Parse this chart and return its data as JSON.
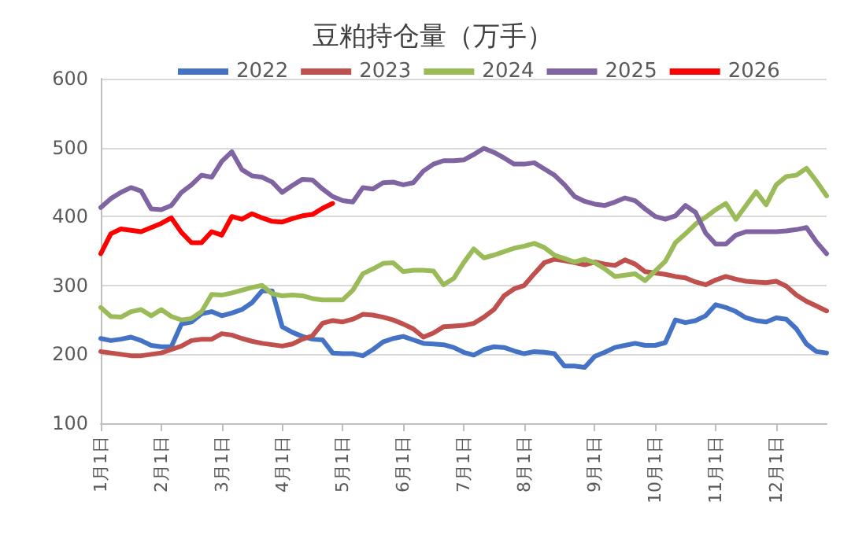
{
  "chart_data": {
    "type": "line",
    "title": "豆粕持仓量（万手）",
    "legend": "top",
    "grid": "y",
    "marker": "none",
    "line_style": "solid",
    "ylim": [
      100,
      600
    ],
    "yticks": [
      100,
      200,
      300,
      400,
      500,
      600
    ],
    "categories": [
      "1月1日",
      null,
      null,
      null,
      null,
      null,
      "2月1日",
      null,
      null,
      null,
      null,
      null,
      "3月1日",
      null,
      null,
      null,
      null,
      null,
      "4月1日",
      null,
      null,
      null,
      null,
      null,
      "5月1日",
      null,
      null,
      null,
      null,
      null,
      "6月1日",
      null,
      null,
      null,
      null,
      null,
      "7月1日",
      null,
      null,
      null,
      null,
      null,
      "8月1日",
      null,
      null,
      null,
      null,
      null,
      null,
      "9月1日",
      null,
      null,
      null,
      null,
      null,
      "10月1日",
      null,
      null,
      null,
      null,
      null,
      "11月1日",
      null,
      null,
      null,
      null,
      null,
      "12月1日",
      null,
      null,
      null,
      null,
      null
    ],
    "series": [
      {
        "name": "2022",
        "color": "#4472c4",
        "values": [
          223,
          220,
          222,
          225,
          220,
          213,
          211,
          211,
          244,
          247,
          259,
          262,
          256,
          260,
          265,
          275,
          292,
          292,
          240,
          232,
          226,
          222,
          221,
          202,
          201,
          201,
          198,
          207,
          218,
          223,
          226,
          221,
          216,
          215,
          214,
          210,
          203,
          199,
          207,
          211,
          210,
          205,
          201,
          204,
          203,
          201,
          183,
          183,
          181,
          197,
          203,
          210,
          213,
          216,
          213,
          213,
          217,
          250,
          246,
          249,
          256,
          272,
          268,
          262,
          253,
          249,
          247,
          253,
          251,
          237,
          215,
          204,
          202
        ]
      },
      {
        "name": "2023",
        "color": "#c0504d",
        "values": [
          204,
          202,
          200,
          198,
          198,
          200,
          202,
          207,
          212,
          220,
          222,
          222,
          230,
          228,
          223,
          219,
          216,
          214,
          212,
          215,
          222,
          227,
          245,
          249,
          247,
          251,
          258,
          257,
          254,
          250,
          244,
          237,
          225,
          231,
          240,
          241,
          242,
          245,
          254,
          265,
          285,
          295,
          300,
          317,
          333,
          338,
          336,
          333,
          330,
          334,
          331,
          329,
          337,
          331,
          320,
          318,
          316,
          313,
          311,
          305,
          301,
          308,
          313,
          309,
          306,
          305,
          304,
          306,
          299,
          286,
          277,
          270,
          263
        ]
      },
      {
        "name": "2024",
        "color": "#9bbb59",
        "values": [
          268,
          255,
          254,
          262,
          265,
          256,
          265,
          255,
          250,
          252,
          262,
          287,
          286,
          289,
          293,
          297,
          300,
          288,
          285,
          286,
          285,
          281,
          279,
          279,
          279,
          293,
          317,
          324,
          332,
          333,
          320,
          322,
          322,
          321,
          301,
          310,
          333,
          353,
          340,
          344,
          349,
          354,
          357,
          361,
          355,
          344,
          339,
          334,
          338,
          333,
          324,
          313,
          315,
          317,
          307,
          321,
          335,
          362,
          375,
          389,
          399,
          410,
          419,
          396,
          416,
          436,
          417,
          446,
          458,
          460,
          470,
          451,
          430
        ]
      },
      {
        "name": "2025",
        "color": "#8064a2",
        "values": [
          413,
          426,
          435,
          442,
          437,
          411,
          410,
          416,
          435,
          446,
          460,
          457,
          480,
          494,
          468,
          459,
          457,
          450,
          435,
          445,
          454,
          453,
          440,
          429,
          423,
          421,
          442,
          440,
          449,
          450,
          446,
          449,
          466,
          476,
          481,
          481,
          482,
          490,
          499,
          493,
          485,
          476,
          476,
          478,
          469,
          460,
          446,
          429,
          422,
          418,
          416,
          421,
          427,
          423,
          411,
          400,
          396,
          401,
          416,
          406,
          376,
          360,
          360,
          373,
          378,
          378,
          378,
          378,
          379,
          381,
          384,
          363,
          346
        ]
      },
      {
        "name": "2026",
        "color": "#ff0000",
        "values": [
          346,
          375,
          382,
          380,
          378,
          384,
          390,
          398,
          377,
          362,
          362,
          378,
          373,
          400,
          396,
          404,
          398,
          393,
          392,
          397,
          401,
          403,
          412,
          419,
          null,
          null,
          null,
          null,
          null,
          null,
          null,
          null,
          null,
          null,
          null,
          null,
          null,
          null,
          null,
          null,
          null,
          null,
          null,
          null,
          null,
          null,
          null,
          null,
          null,
          null,
          null,
          null,
          null,
          null,
          null,
          null,
          null,
          null,
          null,
          null,
          null,
          null,
          null,
          null,
          null,
          null,
          null,
          null,
          null,
          null,
          null,
          null,
          null
        ]
      }
    ]
  }
}
